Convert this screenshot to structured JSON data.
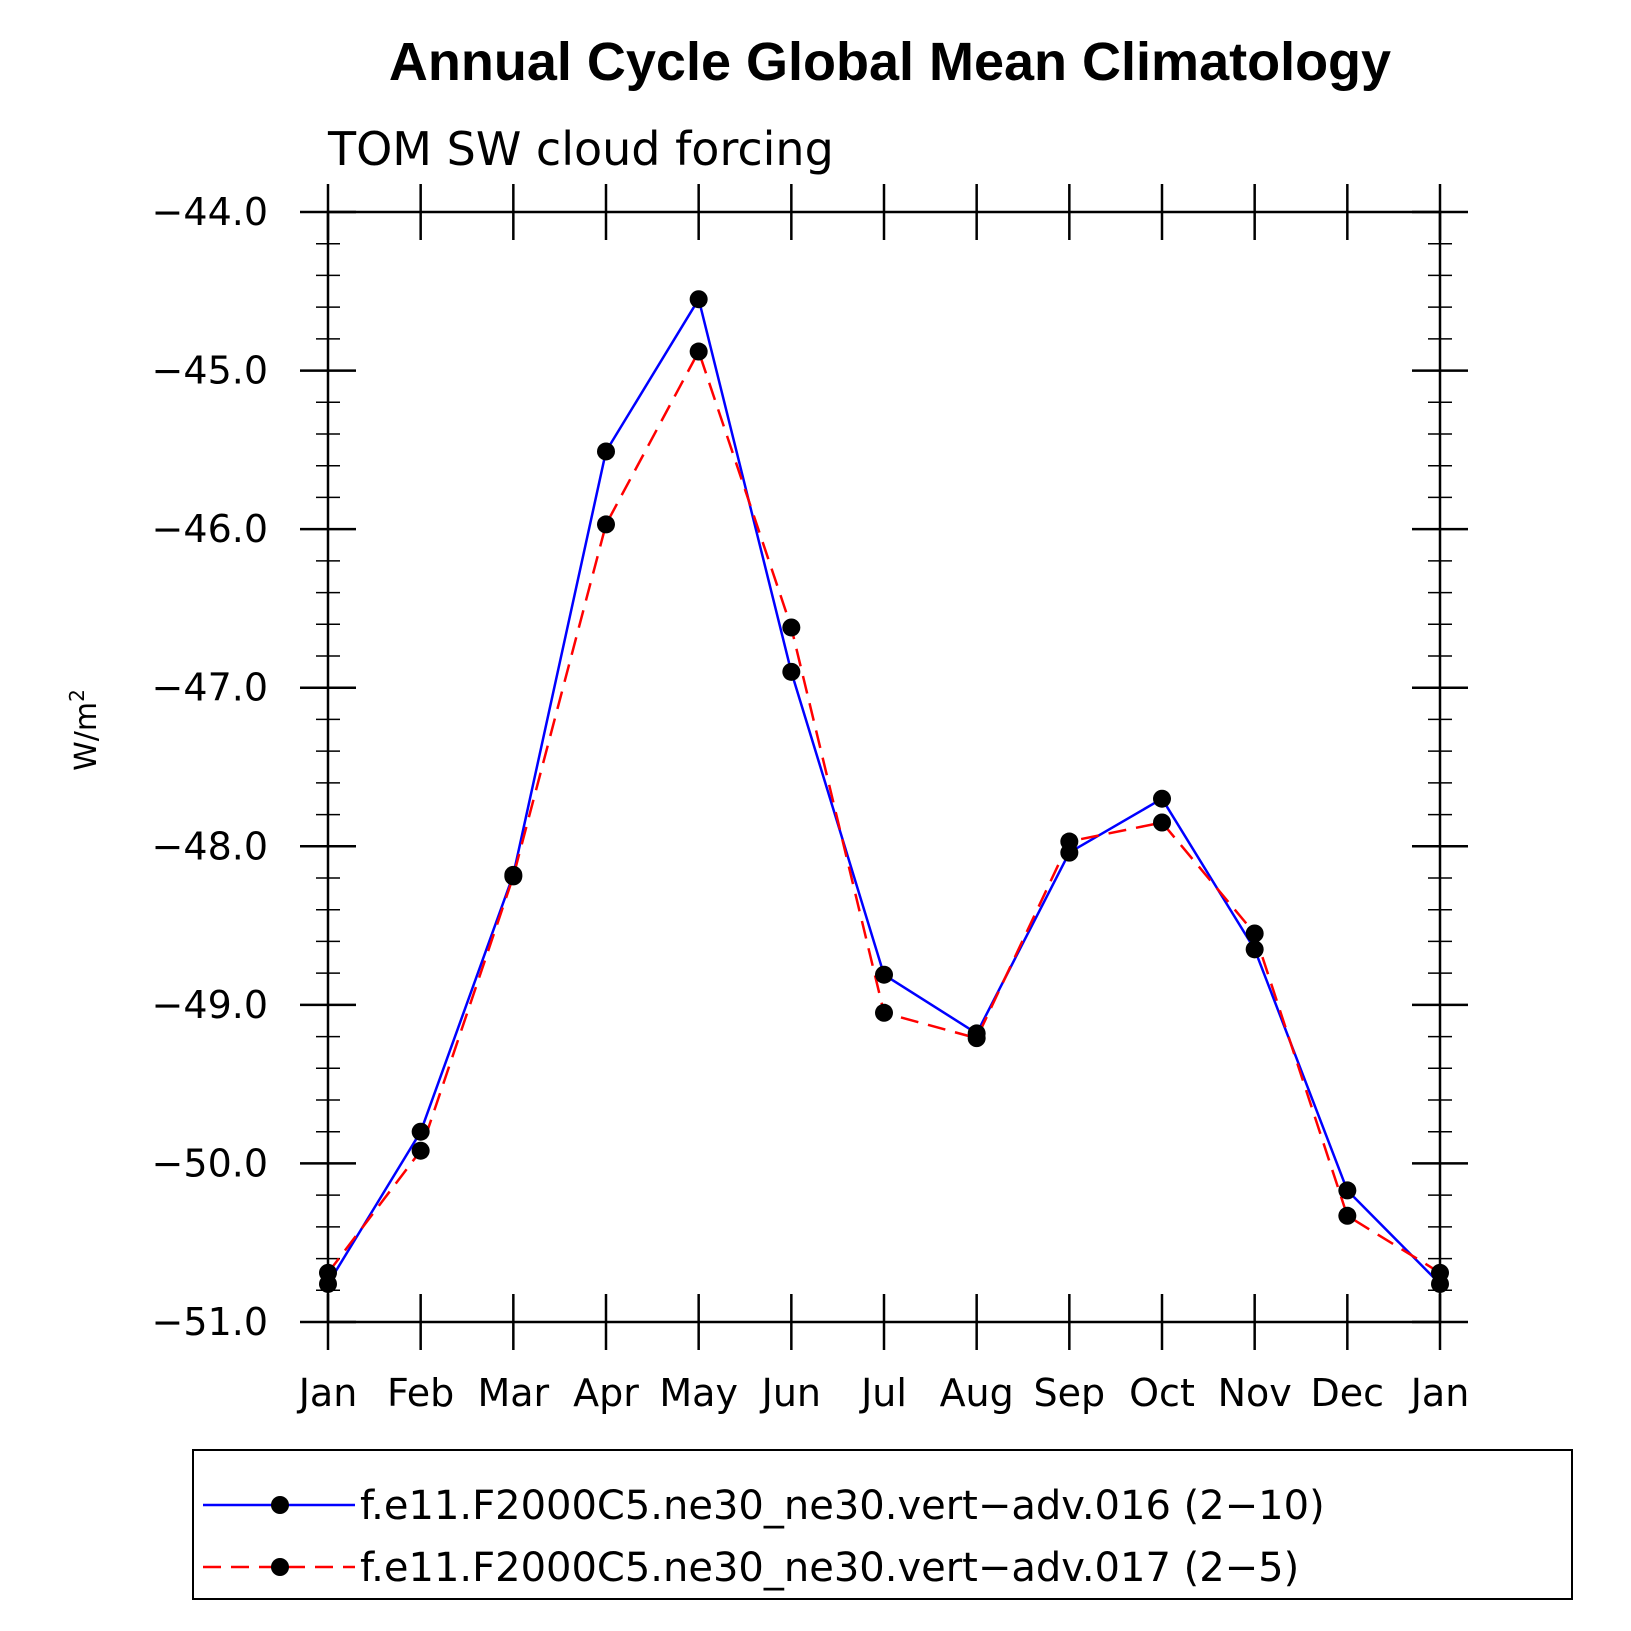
{
  "chart_data": {
    "type": "line",
    "title": "Annual Cycle Global Mean Climatology",
    "subtitle": "TOM SW cloud forcing",
    "ylabel": "W/m",
    "ylabel_sup": "2",
    "xlabel": "",
    "categories": [
      "Jan",
      "Feb",
      "Mar",
      "Apr",
      "May",
      "Jun",
      "Jul",
      "Aug",
      "Sep",
      "Oct",
      "Nov",
      "Dec",
      "Jan"
    ],
    "ylim": [
      -51.0,
      -44.0
    ],
    "y_ticks": [
      "-44.0",
      "-45.0",
      "-46.0",
      "-47.0",
      "-48.0",
      "-49.0",
      "-50.0",
      "-51.0"
    ],
    "y_tick_values": [
      -44.0,
      -45.0,
      -46.0,
      -47.0,
      -48.0,
      -49.0,
      -50.0,
      -51.0
    ],
    "y_minor_step": 0.2,
    "grid": false,
    "legend_position": "bottom",
    "series": [
      {
        "name": "f.e11.F2000C5.ne30_ne30.vert−adv.016 (2−10)",
        "color": "#0000ff",
        "line_style": "solid",
        "marker": "filled-circle",
        "values": [
          -50.76,
          -49.8,
          -48.18,
          -45.51,
          -44.55,
          -46.9,
          -48.81,
          -49.18,
          -48.04,
          -47.7,
          -48.65,
          -50.17,
          -50.76
        ]
      },
      {
        "name": "f.e11.F2000C5.ne30_ne30.vert−adv.017 (2−5)",
        "color": "#ff0000",
        "line_style": "dashed",
        "marker": "filled-circle",
        "values": [
          -50.69,
          -49.92,
          -48.19,
          -45.97,
          -44.88,
          -46.62,
          -49.05,
          -49.21,
          -47.97,
          -47.85,
          -48.55,
          -50.33,
          -50.69
        ]
      }
    ]
  }
}
